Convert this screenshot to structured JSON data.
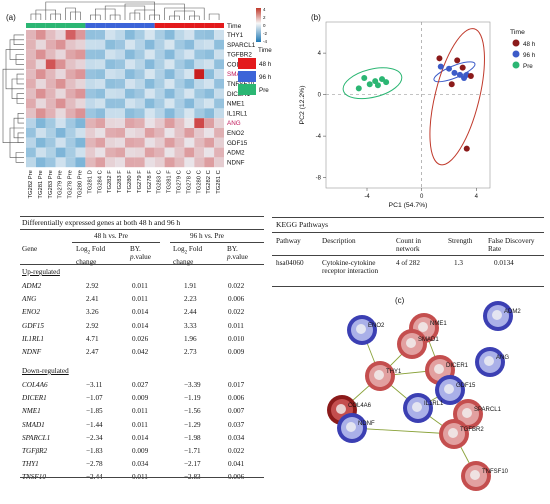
{
  "panel_labels": {
    "a": "(a)",
    "b": "(b)",
    "c": "(c)"
  },
  "heatmap": {
    "genes": [
      "THY1",
      "SPARCL1",
      "TGFBR2",
      "COL4A6",
      "SMAD1",
      "TNFSF10",
      "DICER1",
      "NME1",
      "IL1RL1",
      "ANG",
      "ENO2",
      "GDF15",
      "ADM2",
      "NDNF"
    ],
    "gene_colors": [
      "#111",
      "#111",
      "#111",
      "#111",
      "#c2185b",
      "#111",
      "#111",
      "#111",
      "#111",
      "#c2185b",
      "#111",
      "#111",
      "#111",
      "#111"
    ],
    "samples": [
      "TG282 Pre",
      "TG281 Pre",
      "TG283 Pre",
      "TG279 Pre",
      "TG278 Pre",
      "TG280 Pre",
      "TG281 D",
      "TG284 C",
      "TG282 F",
      "TG283 F",
      "TG280 F",
      "TG279 F",
      "TG278 F",
      "TG283 C",
      "TG281 F",
      "TG279 C",
      "TG278 C",
      "TG280 C",
      "TG282 C",
      "TG281 C"
    ],
    "time_legend_title": "Time",
    "time_legend": [
      {
        "label": "48 h",
        "color": "#e31a1c"
      },
      {
        "label": "96 h",
        "color": "#3c64d8"
      },
      {
        "label": "Pre",
        "color": "#2bb673"
      }
    ],
    "scale_ticks": [
      "4",
      "2",
      "0",
      "-2",
      "-4"
    ],
    "top_bar_label": "Time"
  },
  "pca": {
    "xlabel": "PC1 (54.7%)",
    "ylabel": "PC2 (12.2%)",
    "x_ticks": [
      "-4",
      "0",
      "4"
    ],
    "y_ticks": [
      "4",
      "0",
      "-4",
      "-8"
    ],
    "xlim": [
      -7,
      5
    ],
    "ylim": [
      -9,
      7
    ],
    "legend_title": "Time",
    "legend": [
      {
        "label": "48 h",
        "color": "#8b1a1a"
      },
      {
        "label": "96 h",
        "color": "#3c5bc8"
      },
      {
        "label": "Pre",
        "color": "#2bb673"
      }
    ],
    "points": {
      "pre": [
        [
          -4.6,
          0.6
        ],
        [
          -4.2,
          1.6
        ],
        [
          -3.8,
          1.0
        ],
        [
          -3.4,
          1.3
        ],
        [
          -3.2,
          0.9
        ],
        [
          -2.9,
          1.5
        ],
        [
          -2.6,
          1.2
        ]
      ],
      "h96": [
        [
          1.4,
          2.7
        ],
        [
          2.0,
          2.5
        ],
        [
          2.4,
          2.1
        ],
        [
          2.8,
          1.9
        ],
        [
          3.1,
          1.6
        ],
        [
          3.3,
          1.9
        ]
      ],
      "h48": [
        [
          1.3,
          3.5
        ],
        [
          2.6,
          3.3
        ],
        [
          3.0,
          2.6
        ],
        [
          3.6,
          1.8
        ],
        [
          2.2,
          1.0
        ],
        [
          3.3,
          -5.2
        ]
      ]
    }
  },
  "de_table": {
    "title": "Differentially expressed genes at both 48 h and 96 h",
    "group1": "48 h vs. Pre",
    "group2": "96 h vs. Pre",
    "col_gene": "Gene",
    "col_lfc_a": "Log",
    "col_lfc_sub": "2",
    "col_lfc_b": " Fold change",
    "col_by": "BY.",
    "col_p": "p",
    "col_p2": ".value",
    "up_label": "Up-regulated",
    "down_label": "Down-regulated",
    "up": [
      {
        "gene": "ADM2",
        "fc1": "2.92",
        "p1": "0.011",
        "fc2": "1.91",
        "p2": "0.022"
      },
      {
        "gene": "ANG",
        "fc1": "2.41",
        "p1": "0.011",
        "fc2": "2.23",
        "p2": "0.006"
      },
      {
        "gene": "ENO2",
        "fc1": "3.26",
        "p1": "0.014",
        "fc2": "2.44",
        "p2": "0.022"
      },
      {
        "gene": "GDF15",
        "fc1": "2.92",
        "p1": "0.014",
        "fc2": "3.33",
        "p2": "0.011"
      },
      {
        "gene": "IL1RL1",
        "fc1": "4.71",
        "p1": "0.026",
        "fc2": "1.96",
        "p2": "0.010"
      },
      {
        "gene": "NDNF",
        "fc1": "2.47",
        "p1": "0.042",
        "fc2": "2.73",
        "p2": "0.009"
      }
    ],
    "down": [
      {
        "gene": "COL4A6",
        "fc1": "−3.11",
        "p1": "0.027",
        "fc2": "−3.39",
        "p2": "0.017"
      },
      {
        "gene": "DICER1",
        "fc1": "−1.07",
        "p1": "0.009",
        "fc2": "−1.19",
        "p2": "0.006"
      },
      {
        "gene": "NME1",
        "fc1": "−1.85",
        "p1": "0.011",
        "fc2": "−1.56",
        "p2": "0.007"
      },
      {
        "gene": "SMAD1",
        "fc1": "−1.44",
        "p1": "0.011",
        "fc2": "−1.29",
        "p2": "0.037"
      },
      {
        "gene": "SPARCL1",
        "fc1": "−2.34",
        "p1": "0.014",
        "fc2": "−1.98",
        "p2": "0.034"
      },
      {
        "gene": "TGFβR2",
        "fc1": "−1.83",
        "p1": "0.009",
        "fc2": "−1.71",
        "p2": "0.022"
      },
      {
        "gene": "THY1",
        "fc1": "−2.78",
        "p1": "0.034",
        "fc2": "−2.17",
        "p2": "0.041"
      },
      {
        "gene": "TNSF10",
        "fc1": "−2.44",
        "p1": "0.011",
        "fc2": "−2.83",
        "p2": "0.006"
      }
    ]
  },
  "kegg": {
    "title": "KEGG Pathways",
    "headers": {
      "pathway": "Pathway",
      "description": "Description",
      "count": "Count in network",
      "strength": "Strength",
      "fdr": "False Discovery Rate"
    },
    "row": {
      "pathway": "hsa04060",
      "description": "Cytokine-cytokine receptor interaction",
      "count": "4 of 282",
      "strength": "1.3",
      "fdr": "0.0134"
    }
  },
  "network": {
    "nodes": [
      "ENO2",
      "NME1",
      "ADM2",
      "SMAD1",
      "ANG",
      "THY1",
      "DICER1",
      "GDF15",
      "COL4A6",
      "IL1RL1",
      "SPARCL1",
      "NDNF",
      "TGFBR2",
      "TNFSF10"
    ]
  }
}
